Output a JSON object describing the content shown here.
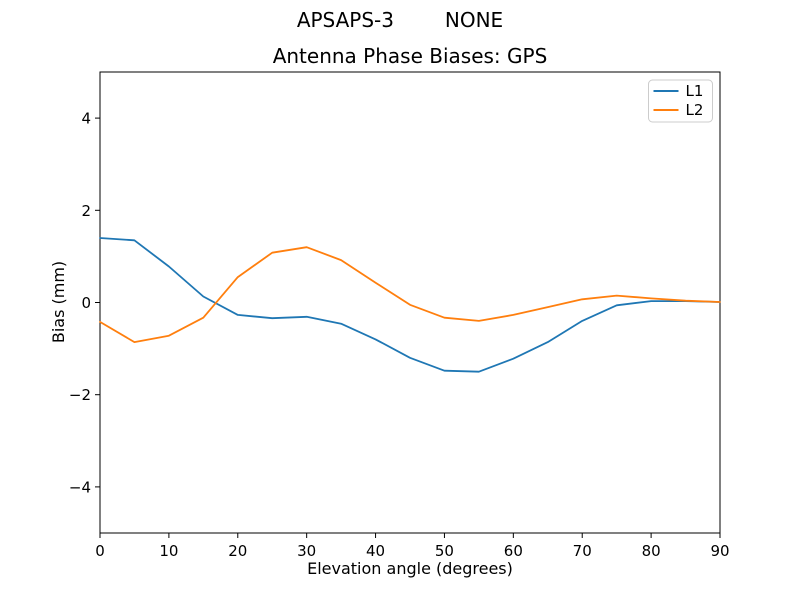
{
  "chart_data": {
    "type": "line",
    "suptitle": "APSAPS-3        NONE",
    "title": "Antenna Phase Biases: GPS",
    "xlabel": "Elevation angle (degrees)",
    "ylabel": "Bias (mm)",
    "xlim": [
      0,
      90
    ],
    "ylim": [
      -5,
      5
    ],
    "xticks": [
      0,
      10,
      20,
      30,
      40,
      50,
      60,
      70,
      80,
      90
    ],
    "yticks": [
      -4,
      -2,
      0,
      2,
      4
    ],
    "grid": false,
    "legend_position": "upper right",
    "x": [
      0,
      5,
      10,
      15,
      20,
      25,
      30,
      35,
      40,
      45,
      50,
      55,
      60,
      65,
      70,
      75,
      80,
      85,
      90
    ],
    "series": [
      {
        "name": "L1",
        "color": "#1f77b4",
        "values": [
          1.4,
          1.35,
          0.78,
          0.13,
          -0.27,
          -0.34,
          -0.31,
          -0.46,
          -0.8,
          -1.2,
          -1.48,
          -1.5,
          -1.22,
          -0.86,
          -0.4,
          -0.06,
          0.03,
          0.03,
          0.01
        ]
      },
      {
        "name": "L2",
        "color": "#ff7f0e",
        "values": [
          -0.42,
          -0.86,
          -0.72,
          -0.33,
          0.55,
          1.08,
          1.2,
          0.92,
          0.43,
          -0.05,
          -0.33,
          -0.4,
          -0.27,
          -0.1,
          0.07,
          0.15,
          0.09,
          0.04,
          0.01
        ]
      }
    ],
    "style": {
      "spine_color": "#000000",
      "legend_border_color": "#cccccc",
      "line_width": 1.8
    }
  }
}
